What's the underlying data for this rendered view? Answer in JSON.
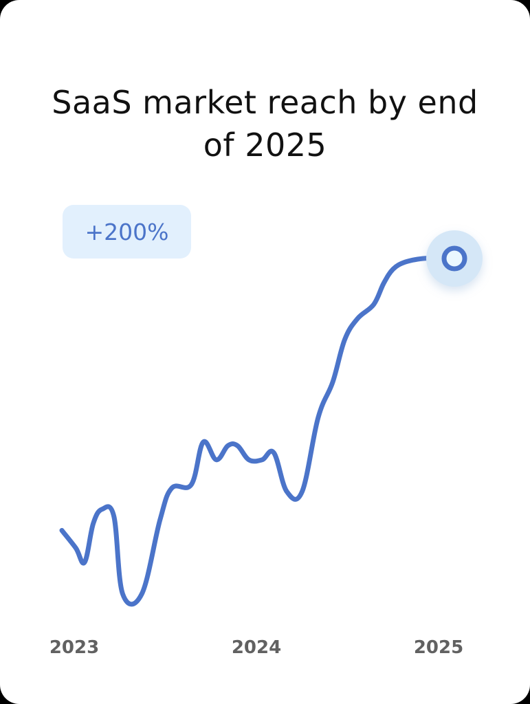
{
  "card": {
    "title": "SaaS market reach by end of 2025",
    "badge": "+200%"
  },
  "chart_data": {
    "type": "line",
    "title": "SaaS market reach by end of 2025",
    "xlabel": "",
    "ylabel": "",
    "x_ticks": [
      "2023",
      "2024",
      "2025"
    ],
    "xlim": [
      2023.0,
      2025.0
    ],
    "ylim": [
      0,
      100
    ],
    "grid": false,
    "legend": "none",
    "annotations": [
      "+200%"
    ],
    "highlight_last_point": true,
    "colors": {
      "line": "#4b74c9",
      "badge_bg": "#e2f0fd",
      "marker_halo": "#d5e7f7",
      "marker_fill": "#eaf7ff"
    },
    "series": [
      {
        "x": [
          2023.0,
          2023.071,
          2023.116,
          2023.16,
          2023.205,
          2023.265,
          2023.31,
          2023.407,
          2023.5,
          2023.56,
          2023.66,
          2023.72,
          2023.787,
          2023.846,
          2023.895,
          2023.953,
          2024.02,
          2024.08,
          2024.146,
          2024.224,
          2024.306,
          2024.38,
          2024.441,
          2024.507,
          2024.589,
          2024.64,
          2024.688,
          2024.75,
          2024.841,
          2024.904,
          2024.948,
          2025.0
        ],
        "y": [
          26,
          21,
          17,
          28,
          32,
          30,
          8,
          8,
          29,
          38,
          39,
          51,
          46,
          50,
          50,
          46,
          46,
          48,
          37,
          37,
          58,
          68,
          80,
          86,
          90,
          96,
          100,
          102,
          103,
          103,
          103,
          103
        ]
      }
    ]
  }
}
